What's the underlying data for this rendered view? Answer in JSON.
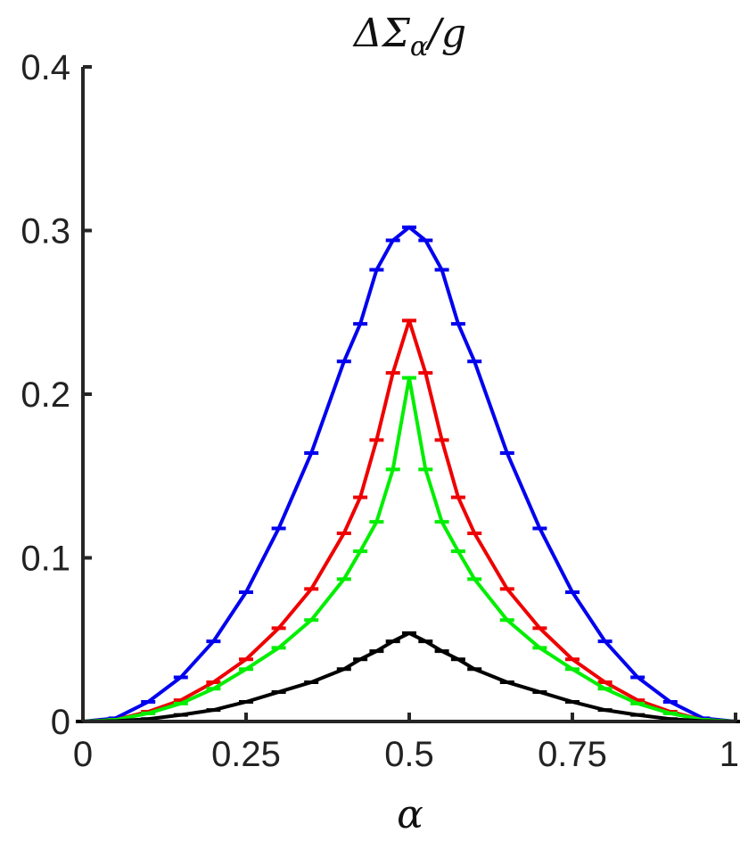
{
  "chart_data": {
    "type": "line",
    "title": "ΔΣ_α/g",
    "title_main": "ΔΣ",
    "title_sub": "α",
    "title_tail": "/g",
    "xlabel": "α",
    "ylabel": "",
    "xlim": [
      0,
      1
    ],
    "ylim": [
      0,
      0.4
    ],
    "xticks": [
      0,
      0.25,
      0.5,
      0.75,
      1
    ],
    "xtick_labels": [
      "0",
      "0.25",
      "0.5",
      "0.75",
      "1"
    ],
    "yticks": [
      0,
      0.1,
      0.2,
      0.3,
      0.4
    ],
    "ytick_labels": [
      "0",
      "0.1",
      "0.2",
      "0.3",
      "0.4"
    ],
    "grid": false,
    "x": [
      0,
      0.05,
      0.1,
      0.15,
      0.2,
      0.25,
      0.3,
      0.35,
      0.4,
      0.425,
      0.45,
      0.475,
      0.5,
      0.525,
      0.55,
      0.575,
      0.6,
      0.65,
      0.7,
      0.75,
      0.8,
      0.85,
      0.9,
      0.95,
      1
    ],
    "series": [
      {
        "color": "#0000ee",
        "values": [
          0,
          0.002,
          0.012,
          0.027,
          0.049,
          0.079,
          0.118,
          0.164,
          0.22,
          0.243,
          0.276,
          0.294,
          0.302,
          0.294,
          0.276,
          0.243,
          0.22,
          0.164,
          0.118,
          0.079,
          0.049,
          0.027,
          0.012,
          0.002,
          0
        ]
      },
      {
        "color": "#ee0000",
        "values": [
          0,
          0.001,
          0.006,
          0.013,
          0.024,
          0.038,
          0.057,
          0.081,
          0.115,
          0.137,
          0.172,
          0.213,
          0.245,
          0.213,
          0.172,
          0.137,
          0.115,
          0.081,
          0.057,
          0.038,
          0.024,
          0.013,
          0.006,
          0.001,
          0
        ]
      },
      {
        "color": "#00ee00",
        "values": [
          0,
          0.001,
          0.005,
          0.011,
          0.02,
          0.032,
          0.045,
          0.062,
          0.087,
          0.104,
          0.122,
          0.154,
          0.21,
          0.154,
          0.122,
          0.104,
          0.087,
          0.062,
          0.045,
          0.032,
          0.02,
          0.011,
          0.005,
          0.001,
          0
        ]
      },
      {
        "color": "#000000",
        "values": [
          0,
          0.0003,
          0.0015,
          0.004,
          0.007,
          0.012,
          0.018,
          0.024,
          0.032,
          0.038,
          0.043,
          0.049,
          0.054,
          0.049,
          0.043,
          0.038,
          0.032,
          0.024,
          0.018,
          0.012,
          0.007,
          0.004,
          0.0015,
          0.0003,
          0
        ]
      }
    ]
  }
}
